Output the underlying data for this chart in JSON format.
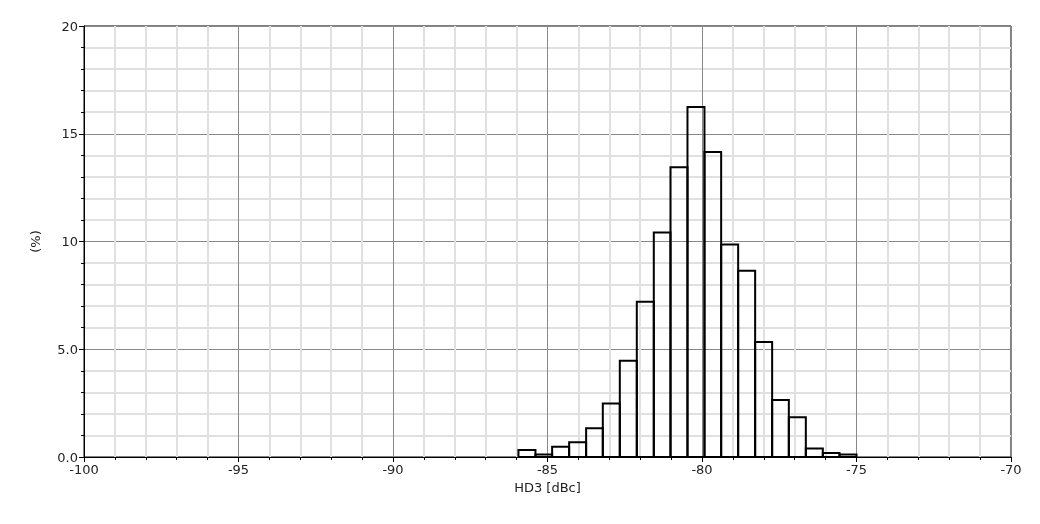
{
  "chart_data": {
    "type": "histogram",
    "xlabel": "HD3 [dBc]",
    "ylabel": "(%)",
    "bins": [
      -85.94,
      -85.39,
      -84.85,
      -84.3,
      -83.75,
      -83.21,
      -82.66,
      -82.11,
      -81.56,
      -81.02,
      -80.47,
      -79.92,
      -79.38,
      -78.83,
      -78.28,
      -77.73,
      -77.19,
      -76.64,
      -76.09,
      -75.55,
      -75.0
    ],
    "values": [
      0.33,
      0.12,
      0.48,
      0.69,
      1.33,
      2.48,
      4.47,
      7.2,
      10.42,
      13.44,
      16.24,
      14.15,
      9.86,
      8.64,
      5.34,
      2.64,
      1.85,
      0.4,
      0.19,
      0.12
    ],
    "color": "#000000",
    "xlim": [
      -100,
      -70
    ],
    "xticks": [
      -100,
      -95,
      -90,
      -85,
      -80,
      -75,
      -70
    ],
    "ylim": [
      0,
      20
    ],
    "yticks": [
      {
        "value": 0,
        "label": "0.0"
      },
      {
        "value": 5,
        "label": "5.0"
      },
      10,
      15,
      20
    ],
    "grid": true
  }
}
